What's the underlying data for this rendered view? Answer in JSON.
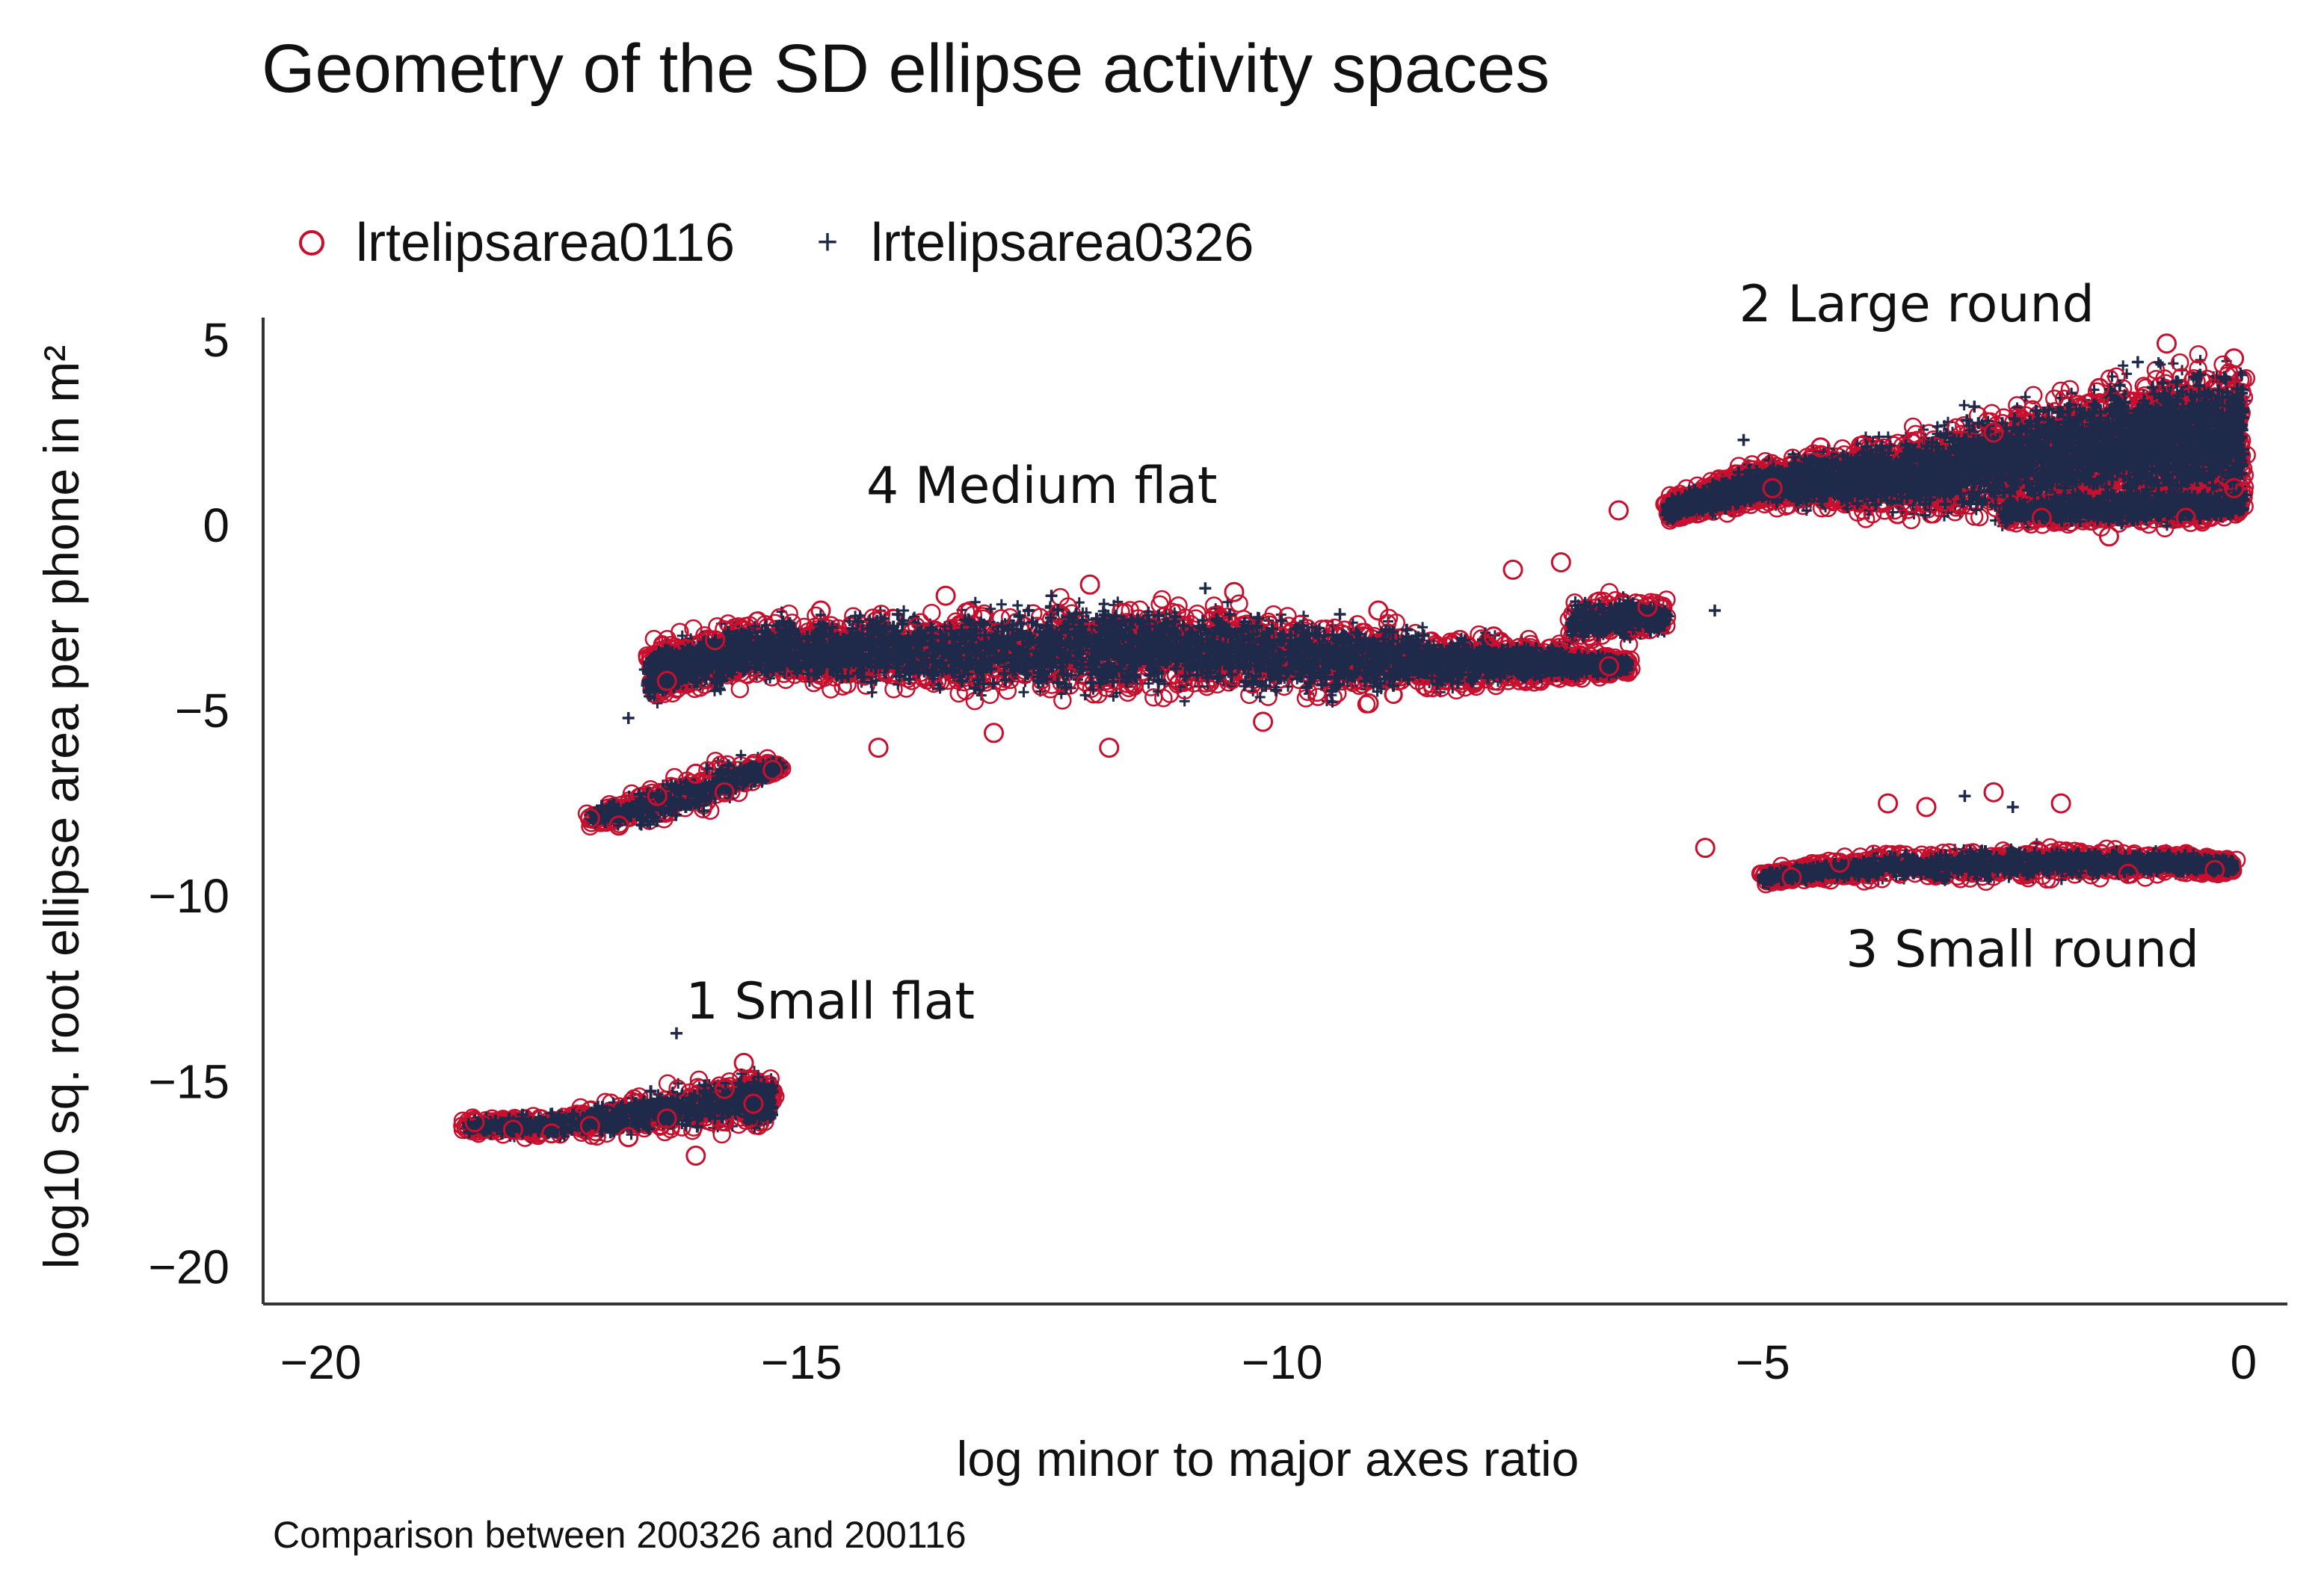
{
  "chart_data": {
    "type": "scatter",
    "title": "Geometry of the SD ellipse activity spaces",
    "caption": "Comparison between 200326 and 200116",
    "xlabel": "log minor to major axes ratio",
    "ylabel": "log10 sq. root ellipse area per phone in m²",
    "xlim": [
      -20.6,
      0.3
    ],
    "ylim": [
      -21,
      5.6
    ],
    "xticks": [
      -20,
      -15,
      -10,
      -5,
      0
    ],
    "xtick_labels": [
      "−20",
      "−15",
      "−10",
      "−5",
      "0"
    ],
    "yticks": [
      5,
      0,
      -5,
      -10,
      -15,
      -20
    ],
    "ytick_labels": [
      "5",
      "0",
      "−5",
      "−10",
      "−15",
      "−20"
    ],
    "grid": false,
    "legend_position": "top",
    "series": [
      {
        "name": "lrtelipsarea0116",
        "marker": "hollow-circle",
        "color": "#c8102e",
        "points": [
          [
            -18.4,
            -16.1
          ],
          [
            -18.0,
            -16.3
          ],
          [
            -17.6,
            -16.4
          ],
          [
            -17.2,
            -16.2
          ],
          [
            -16.8,
            -16.5
          ],
          [
            -16.4,
            -16.0
          ],
          [
            -16.1,
            -17.0
          ],
          [
            -15.8,
            -15.2
          ],
          [
            -15.6,
            -14.5
          ],
          [
            -15.5,
            -15.6
          ],
          [
            -17.2,
            -7.9
          ],
          [
            -16.9,
            -8.1
          ],
          [
            -16.5,
            -7.3
          ],
          [
            -16.1,
            -6.7
          ],
          [
            -15.8,
            -7.2
          ],
          [
            -15.3,
            -6.6
          ],
          [
            -14.2,
            -6.0
          ],
          [
            -16.4,
            -4.2
          ],
          [
            -15.9,
            -3.1
          ],
          [
            -14.8,
            -2.3
          ],
          [
            -13.5,
            -1.9
          ],
          [
            -12.0,
            -1.6
          ],
          [
            -10.5,
            -1.8
          ],
          [
            -9.0,
            -2.3
          ],
          [
            -7.8,
            -3.0
          ],
          [
            -6.6,
            -3.8
          ],
          [
            -13.0,
            -5.6
          ],
          [
            -11.8,
            -6.0
          ],
          [
            -10.2,
            -5.3
          ],
          [
            -9.1,
            -4.8
          ],
          [
            -7.6,
            -1.2
          ],
          [
            -7.1,
            -1.0
          ],
          [
            -6.5,
            0.4
          ],
          [
            -6.2,
            -2.2
          ],
          [
            -5.6,
            -8.7
          ],
          [
            -4.7,
            -9.5
          ],
          [
            -4.2,
            -9.1
          ],
          [
            -3.7,
            -7.5
          ],
          [
            -3.3,
            -7.6
          ],
          [
            -2.6,
            -7.2
          ],
          [
            -1.9,
            -7.5
          ],
          [
            -1.2,
            -9.4
          ],
          [
            -0.3,
            -9.3
          ],
          [
            -4.9,
            1.0
          ],
          [
            -4.4,
            2.1
          ],
          [
            -3.6,
            0.3
          ],
          [
            -2.6,
            2.5
          ],
          [
            -1.5,
            3.7
          ],
          [
            -0.8,
            4.9
          ],
          [
            -0.1,
            4.5
          ],
          [
            -2.1,
            0.2
          ],
          [
            -0.6,
            0.2
          ],
          [
            -0.1,
            1.0
          ],
          [
            -1.4,
            -0.3
          ]
        ]
      },
      {
        "name": "lrtelipsarea0326",
        "marker": "plus",
        "color": "#1f2a4a",
        "points": [
          [
            -18.2,
            -16.2
          ],
          [
            -17.5,
            -16.3
          ],
          [
            -16.9,
            -16.1
          ],
          [
            -16.3,
            -13.7
          ],
          [
            -15.9,
            -16.0
          ],
          [
            -15.6,
            -15.3
          ],
          [
            -17.0,
            -7.8
          ],
          [
            -16.6,
            -8.0
          ],
          [
            -16.0,
            -7.0
          ],
          [
            -15.5,
            -6.5
          ],
          [
            -16.8,
            -5.2
          ],
          [
            -15.5,
            -3.4
          ],
          [
            -14.0,
            -2.4
          ],
          [
            -12.4,
            -1.9
          ],
          [
            -10.8,
            -1.7
          ],
          [
            -9.4,
            -2.4
          ],
          [
            -8.1,
            -3.1
          ],
          [
            -6.9,
            -3.6
          ],
          [
            -6.0,
            -2.4
          ],
          [
            -5.5,
            -2.3
          ],
          [
            -5.2,
            2.3
          ],
          [
            -5.8,
            0.4
          ],
          [
            -4.5,
            -9.5
          ],
          [
            -3.8,
            -9.4
          ],
          [
            -2.9,
            -7.3
          ],
          [
            -2.4,
            -7.6
          ],
          [
            -1.6,
            -9.2
          ],
          [
            -0.5,
            -9.3
          ],
          [
            -3.9,
            1.5
          ],
          [
            -2.8,
            3.2
          ],
          [
            -1.1,
            4.4
          ],
          [
            -0.2,
            4.0
          ],
          [
            -1.7,
            0.1
          ],
          [
            -0.3,
            0.3
          ]
        ]
      }
    ],
    "clusters": [
      {
        "label": "1 Small flat",
        "x": -14.7,
        "y": -13.3,
        "x_range": [
          -18.5,
          -15.3
        ],
        "y_range": [
          -17.2,
          -14.2
        ]
      },
      {
        "label": "4 Medium flat",
        "x": -12.5,
        "y": 0.6,
        "x_range": [
          -17.2,
          -5.5
        ],
        "y_range": [
          -8.3,
          -1.0
        ]
      },
      {
        "label": "2 Large round",
        "x": -3.4,
        "y": 5.5,
        "x_range": [
          -6.2,
          0.0
        ],
        "y_range": [
          -0.5,
          5.0
        ]
      },
      {
        "label": "3 Small round",
        "x": -2.3,
        "y": -11.9,
        "x_range": [
          -5.6,
          0.0
        ],
        "y_range": [
          -9.8,
          -7.0
        ]
      }
    ]
  }
}
